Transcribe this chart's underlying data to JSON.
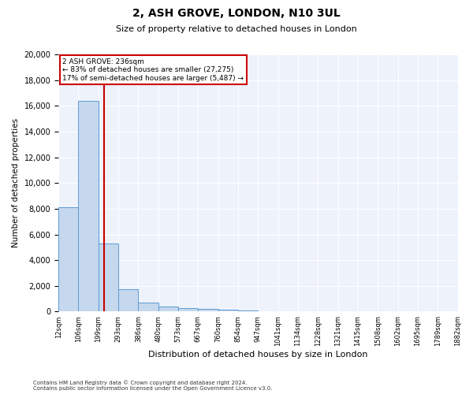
{
  "title": "2, ASH GROVE, LONDON, N10 3UL",
  "subtitle": "Size of property relative to detached houses in London",
  "xlabel": "Distribution of detached houses by size in London",
  "ylabel": "Number of detached properties",
  "footnote1": "Contains HM Land Registry data © Crown copyright and database right 2024.",
  "footnote2": "Contains public sector information licensed under the Open Government Licence v3.0.",
  "annotation_line1": "2 ASH GROVE: 236sqm",
  "annotation_line2": "← 83% of detached houses are smaller (27,275)",
  "annotation_line3": "17% of semi-detached houses are larger (5,487) →",
  "vline_index": 2.28,
  "bar_color": "#c5d8ee",
  "bar_edge_color": "#5b9bd5",
  "vline_color": "#cc0000",
  "annotation_box_color": "#cc0000",
  "background_color": "#eef2fb",
  "bin_labels": [
    "12sqm",
    "106sqm",
    "199sqm",
    "293sqm",
    "386sqm",
    "480sqm",
    "573sqm",
    "667sqm",
    "760sqm",
    "854sqm",
    "947sqm",
    "1041sqm",
    "1134sqm",
    "1228sqm",
    "1321sqm",
    "1415sqm",
    "1508sqm",
    "1602sqm",
    "1695sqm",
    "1789sqm",
    "1882sqm"
  ],
  "bar_heights": [
    8100,
    16400,
    5300,
    1750,
    700,
    370,
    280,
    210,
    170,
    100,
    0,
    0,
    0,
    0,
    0,
    0,
    0,
    0,
    0,
    0
  ],
  "ylim": [
    0,
    20000
  ],
  "yticks": [
    0,
    2000,
    4000,
    6000,
    8000,
    10000,
    12000,
    14000,
    16000,
    18000,
    20000
  ],
  "figwidth": 6.0,
  "figheight": 5.0,
  "dpi": 100
}
